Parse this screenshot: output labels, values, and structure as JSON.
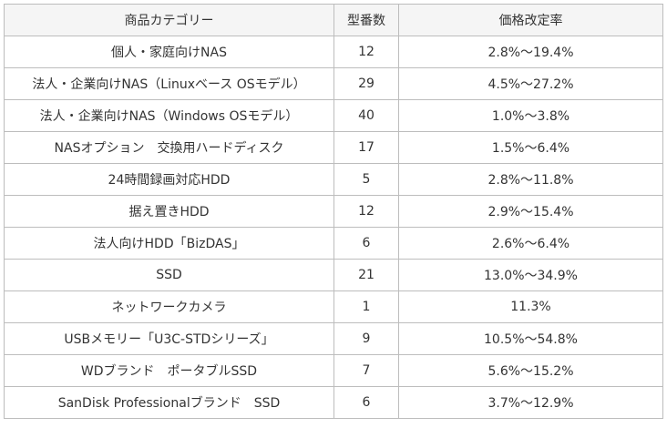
{
  "table": {
    "headers": [
      "商品カテゴリー",
      "型番数",
      "価格改定率"
    ],
    "rows": [
      [
        "個人・家庭向けNAS",
        "12",
        "2.8%～19.4%"
      ],
      [
        "法人・企業向けNAS（Linuxベース OSモデル）",
        "29",
        "4.5%～27.2%"
      ],
      [
        "法人・企業向けNAS（Windows OSモデル）",
        "40",
        "1.0%～3.8%"
      ],
      [
        "NASオプション　交換用ハードディスク",
        "17",
        "1.5%～6.4%"
      ],
      [
        "24時間録画対応HDD",
        "5",
        "2.8%～11.8%"
      ],
      [
        "据え置きHDD",
        "12",
        "2.9%～15.4%"
      ],
      [
        "法人向けHDD「BizDAS」",
        "6",
        "2.6%～6.4%"
      ],
      [
        "SSD",
        "21",
        "13.0%～34.9%"
      ],
      [
        "ネットワークカメラ",
        "1",
        "11.3%"
      ],
      [
        "USBメモリー「U3C-STDシリーズ」",
        "9",
        "10.5%～54.8%"
      ],
      [
        "WDブランド　ポータブルSSD",
        "7",
        "5.6%～15.2%"
      ],
      [
        "SanDisk Professionalブランド　SSD",
        "6",
        "3.7%～12.9%"
      ]
    ]
  },
  "colors": {
    "header_bg": "#f5f5f5",
    "border": "#bdbdbd",
    "text": "#333333"
  }
}
